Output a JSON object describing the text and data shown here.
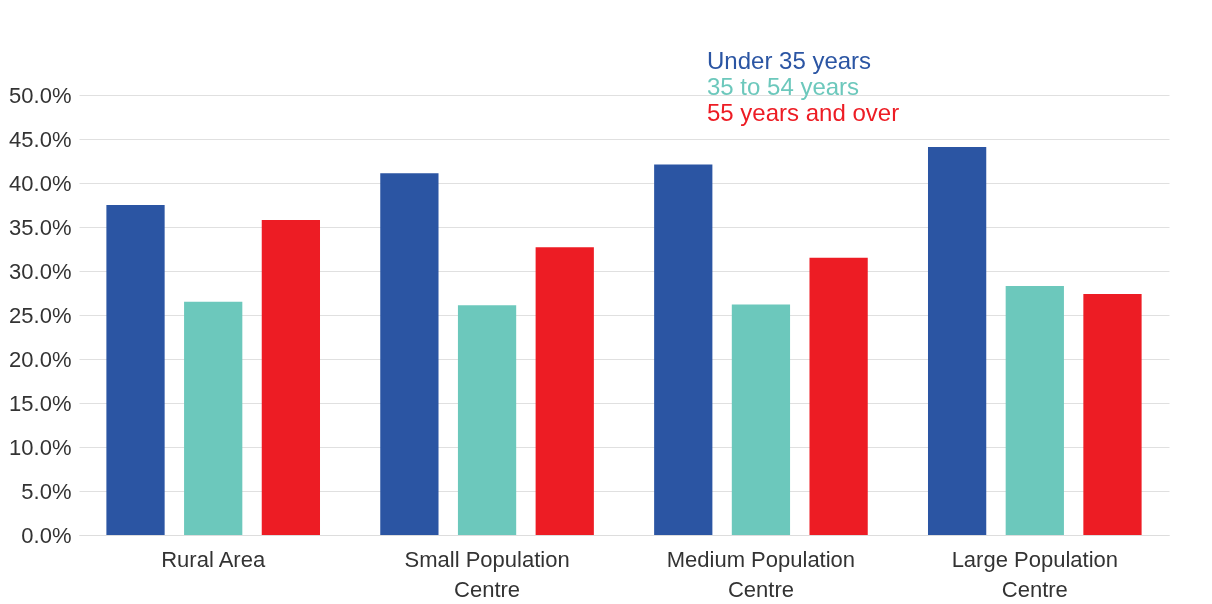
{
  "chart_data": {
    "type": "bar",
    "categories": [
      "Rural Area",
      "Small Population Centre",
      "Medium Population Centre",
      "Large Population Centre"
    ],
    "series": [
      {
        "name": "Under 35 years",
        "color": "#2b55a3",
        "values": [
          37.5,
          41.1,
          42.1,
          44.1
        ]
      },
      {
        "name": "35 to 54 years",
        "color": "#6cc8bc",
        "values": [
          26.5,
          26.1,
          26.2,
          28.3
        ]
      },
      {
        "name": "55 years and over",
        "color": "#ed1c24",
        "values": [
          35.8,
          32.7,
          31.5,
          27.4
        ]
      }
    ],
    "ylim": [
      0,
      50
    ],
    "yticks": [
      {
        "value": 0,
        "label": "0.0%"
      },
      {
        "value": 5,
        "label": "5.0%"
      },
      {
        "value": 10,
        "label": "10.0%"
      },
      {
        "value": 15,
        "label": "15.0%"
      },
      {
        "value": 20,
        "label": "20.0%"
      },
      {
        "value": 25,
        "label": "25.0%"
      },
      {
        "value": 30,
        "label": "30.0%"
      },
      {
        "value": 35,
        "label": "35.0%"
      },
      {
        "value": 40,
        "label": "40.0%"
      },
      {
        "value": 45,
        "label": "45.0%"
      },
      {
        "value": 50,
        "label": "50.0%"
      }
    ],
    "grid": "y",
    "legend": "top"
  }
}
